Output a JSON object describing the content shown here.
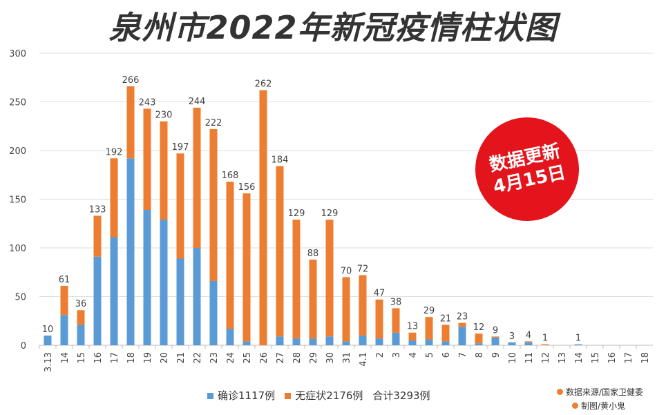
{
  "chart_data": {
    "type": "bar",
    "stacked": true,
    "title": "泉州市2022年新冠疫情柱状图",
    "categories": [
      "3.13",
      "14",
      "15",
      "16",
      "17",
      "18",
      "19",
      "20",
      "21",
      "22",
      "23",
      "24",
      "25",
      "26",
      "27",
      "28",
      "29",
      "30",
      "31",
      "4.1",
      "2",
      "3",
      "4",
      "5",
      "6",
      "7",
      "8",
      "9",
      "10",
      "11",
      "12",
      "13",
      "14",
      "15",
      "16",
      "17",
      "18"
    ],
    "series": [
      {
        "name": "确诊1117例",
        "color": "#5b9bd5",
        "values": [
          10,
          31,
          21,
          91,
          111,
          192,
          139,
          129,
          89,
          100,
          66,
          17,
          4,
          0,
          9,
          7,
          7,
          9,
          4,
          10,
          7,
          13,
          5,
          6,
          4,
          19,
          2,
          8,
          3,
          3,
          0,
          0,
          1,
          0,
          0,
          0,
          0
        ]
      },
      {
        "name": "无症状2176例",
        "color": "#ed7d31",
        "values": [
          0,
          30,
          15,
          42,
          81,
          74,
          104,
          101,
          108,
          144,
          156,
          151,
          152,
          262,
          175,
          122,
          81,
          120,
          66,
          62,
          40,
          25,
          8,
          23,
          17,
          4,
          10,
          1,
          0,
          1,
          1,
          0,
          0,
          0,
          0,
          0,
          0
        ]
      }
    ],
    "totals": [
      10,
      61,
      36,
      133,
      192,
      266,
      243,
      230,
      197,
      244,
      222,
      168,
      156,
      262,
      184,
      129,
      88,
      129,
      70,
      72,
      47,
      38,
      13,
      29,
      21,
      23,
      12,
      9,
      3,
      4,
      1,
      0,
      1,
      0,
      0,
      0,
      0
    ],
    "total_labels": [
      "10",
      "61",
      "36",
      "133",
      "192",
      "266",
      "243",
      "230",
      "197",
      "244",
      "222",
      "168",
      "156",
      "262",
      "184",
      "129",
      "88",
      "129",
      "70",
      "72",
      "47",
      "38",
      "13",
      "29",
      "21",
      "23",
      "12",
      "9",
      "3",
      "4",
      "1",
      "",
      "1",
      "",
      "",
      "",
      ""
    ],
    "ylim": [
      0,
      300
    ],
    "yticks": [
      "0",
      "50",
      "100",
      "150",
      "200",
      "250",
      "300"
    ],
    "grid": true,
    "legend_position": "bottom",
    "legend_extra": "合计3293例"
  },
  "badge": {
    "line1": "数据更新",
    "line2": "4月15日",
    "color": "#e4141c"
  },
  "credits": [
    "数据来源/国家卫健委",
    "制图/黄小鬼"
  ]
}
